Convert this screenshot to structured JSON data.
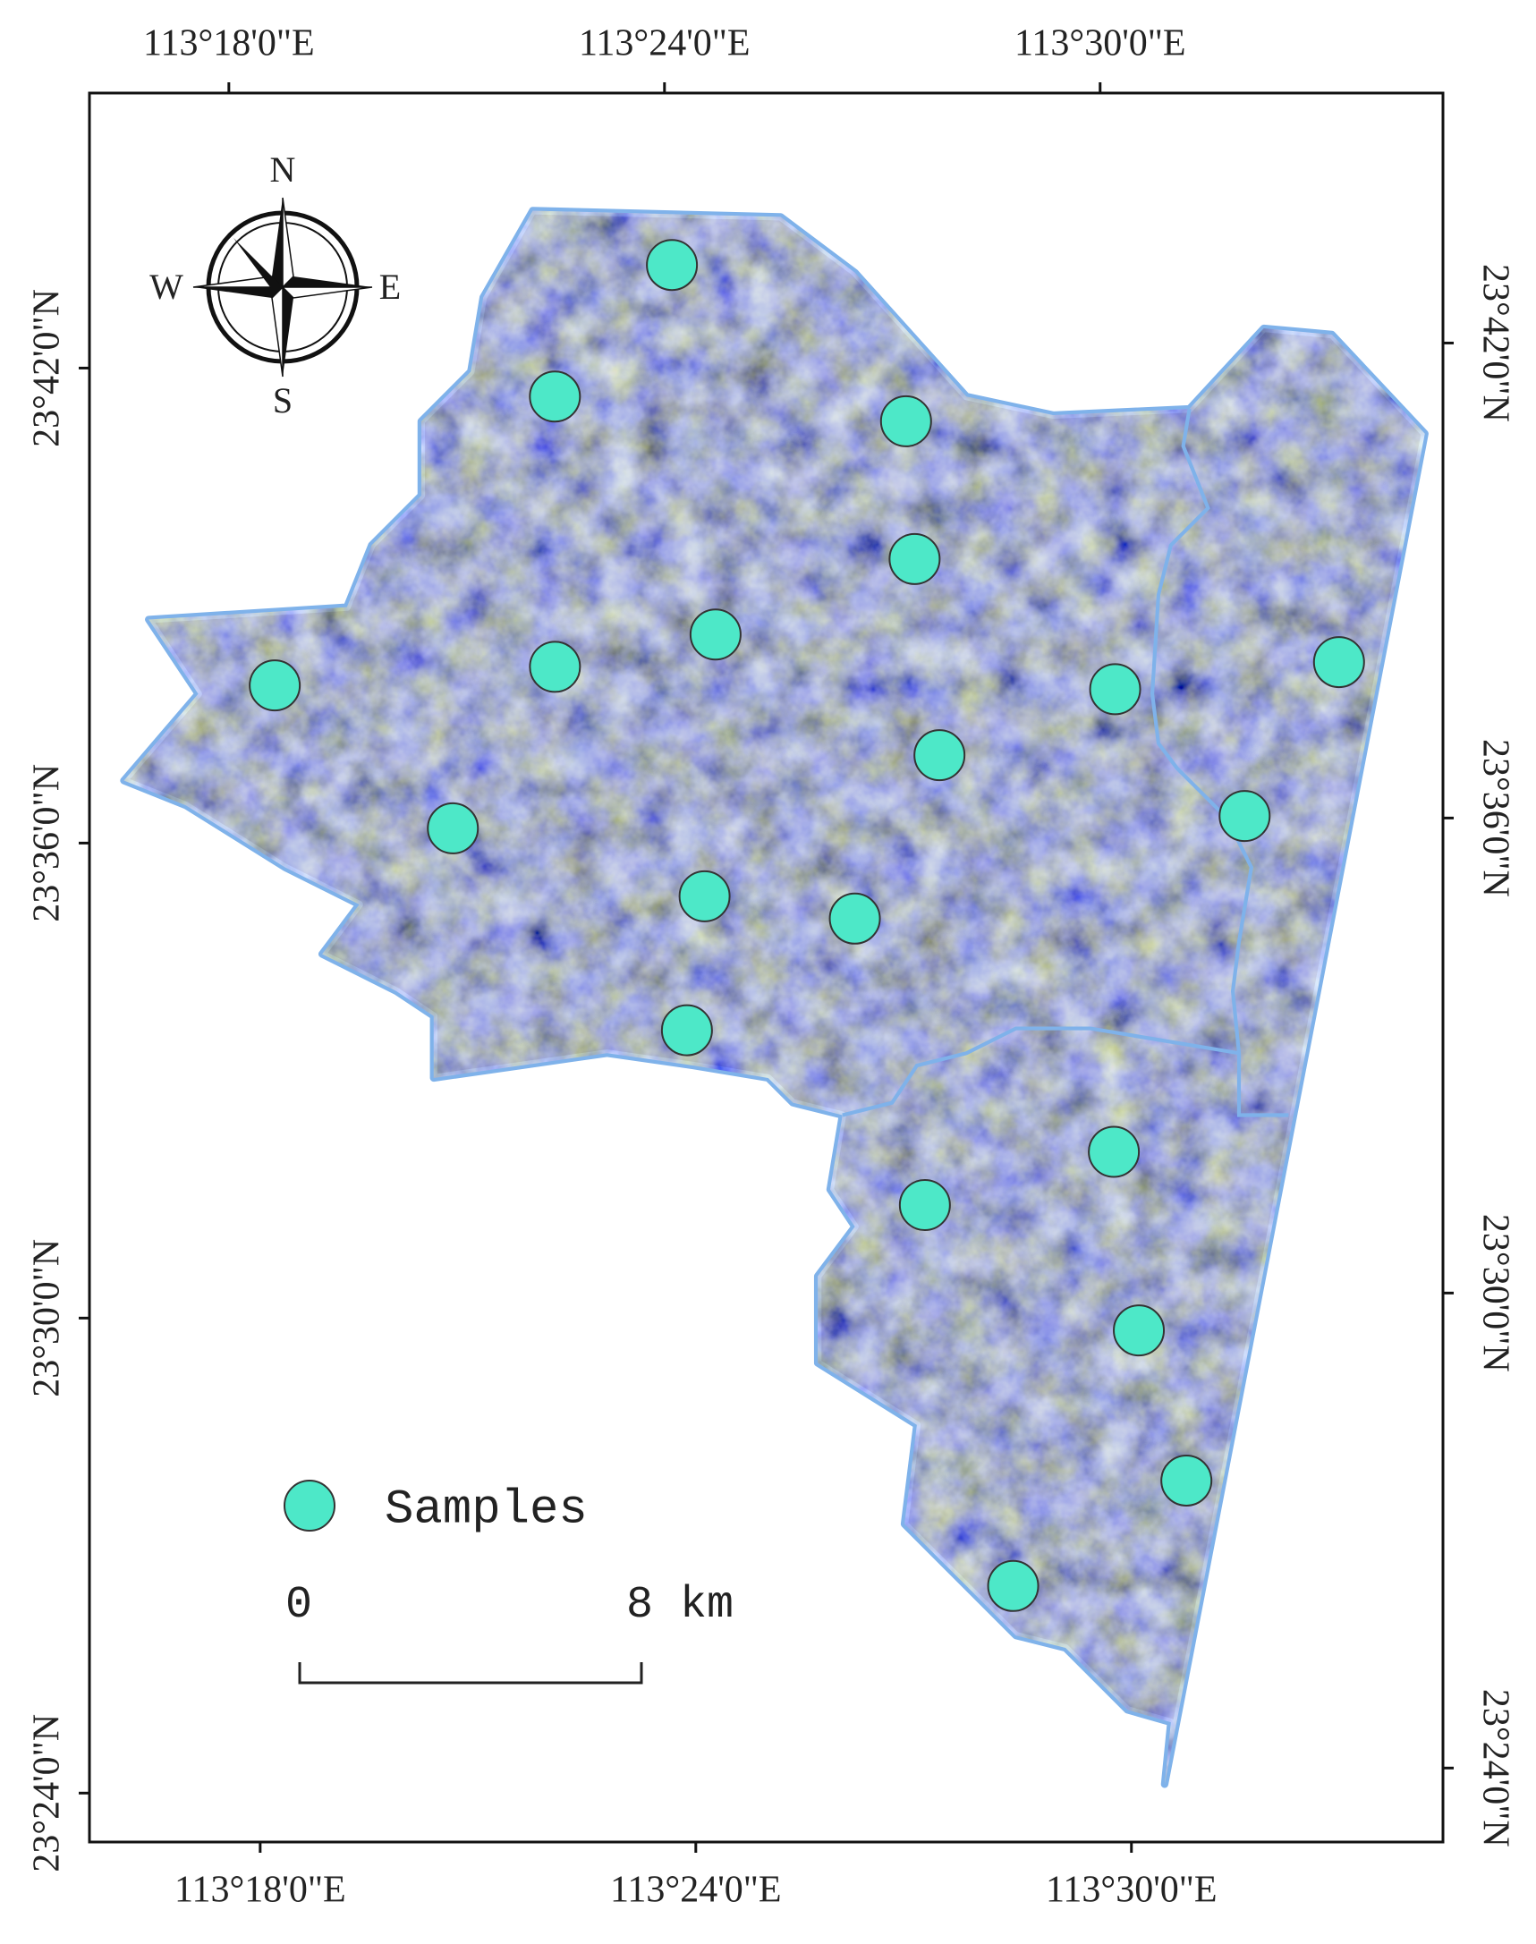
{
  "map": {
    "xlim": [
      113.268,
      113.5787
    ],
    "ylim": [
      23.3897,
      23.7579
    ],
    "top_lon_ticks": [
      {
        "value": 113.3,
        "label": "113°18'0\"E"
      },
      {
        "value": 113.4,
        "label": "113°24'0\"E"
      },
      {
        "value": 113.5,
        "label": "113°30'0\"E"
      }
    ],
    "bottom_lon_ticks": [
      {
        "value": 113.3,
        "label": "113°18'0\"E"
      },
      {
        "value": 113.4,
        "label": "113°24'0\"E"
      },
      {
        "value": 113.5,
        "label": "113°30'0\"E"
      }
    ],
    "left_lat_ticks": [
      {
        "value": 23.7,
        "label": "23°42'0\"N"
      },
      {
        "value": 23.6,
        "label": "23°36'0\"N"
      },
      {
        "value": 23.5,
        "label": "23°30'0\"N"
      },
      {
        "value": 23.4,
        "label": "23°24'0\"N"
      }
    ],
    "right_lat_ticks": [
      {
        "value": 23.7,
        "label": "23°42'0\"N"
      },
      {
        "value": 23.6,
        "label": "23°36'0\"N"
      },
      {
        "value": 23.5,
        "label": "23°30'0\"N"
      },
      {
        "value": 23.4,
        "label": "23°24'0\"N"
      }
    ],
    "compass": {
      "n": "N",
      "s": "S",
      "w": "W",
      "e": "E"
    },
    "legend": {
      "label": "Samples"
    },
    "scale_bar": {
      "start": "0",
      "end": "8 km"
    },
    "samples": {
      "color": "#4de8c8",
      "lon": [
        113.401,
        113.3736,
        113.4541,
        113.4555,
        113.4095,
        113.3725,
        113.3081,
        113.501,
        113.5525,
        113.4604,
        113.3484,
        113.5302,
        113.4059,
        113.4403,
        113.4013,
        113.4988,
        113.4552,
        113.5038,
        113.5141,
        113.4739
      ],
      "lat": [
        23.7217,
        23.694,
        23.6888,
        23.6598,
        23.6439,
        23.6371,
        23.6332,
        23.6324,
        23.6381,
        23.6185,
        23.6031,
        23.6057,
        23.5888,
        23.5841,
        23.5606,
        23.535,
        23.5238,
        23.4974,
        23.4658,
        23.4436
      ]
    }
  }
}
